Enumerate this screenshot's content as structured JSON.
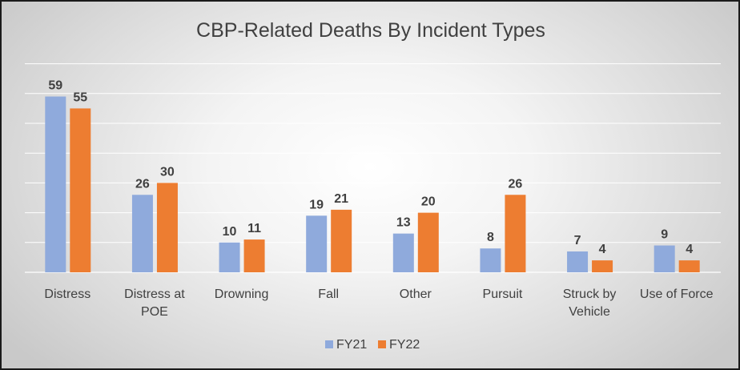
{
  "chart_data": {
    "type": "bar",
    "title": "CBP-Related Deaths By Incident Types",
    "categories": [
      "Distress",
      "Distress at POE",
      "Drowning",
      "Fall",
      "Other",
      "Pursuit",
      "Struck by Vehicle",
      "Use of Force"
    ],
    "category_lines": [
      [
        "Distress"
      ],
      [
        "Distress at",
        "POE"
      ],
      [
        "Drowning"
      ],
      [
        "Fall"
      ],
      [
        "Other"
      ],
      [
        "Pursuit"
      ],
      [
        "Struck by",
        "Vehicle"
      ],
      [
        "Use of Force"
      ]
    ],
    "series": [
      {
        "name": "FY21",
        "color": "#8faadc",
        "values": [
          59,
          26,
          10,
          19,
          13,
          8,
          7,
          9
        ]
      },
      {
        "name": "FY22",
        "color": "#ed7d31",
        "values": [
          55,
          30,
          11,
          21,
          20,
          26,
          4,
          4
        ]
      }
    ],
    "ylim": [
      0,
      70
    ],
    "y_grid_step": 10,
    "grid": true,
    "y_tick_labels_shown": false,
    "data_labels": true,
    "legend": "bottom",
    "xlabel": "",
    "ylabel": ""
  }
}
